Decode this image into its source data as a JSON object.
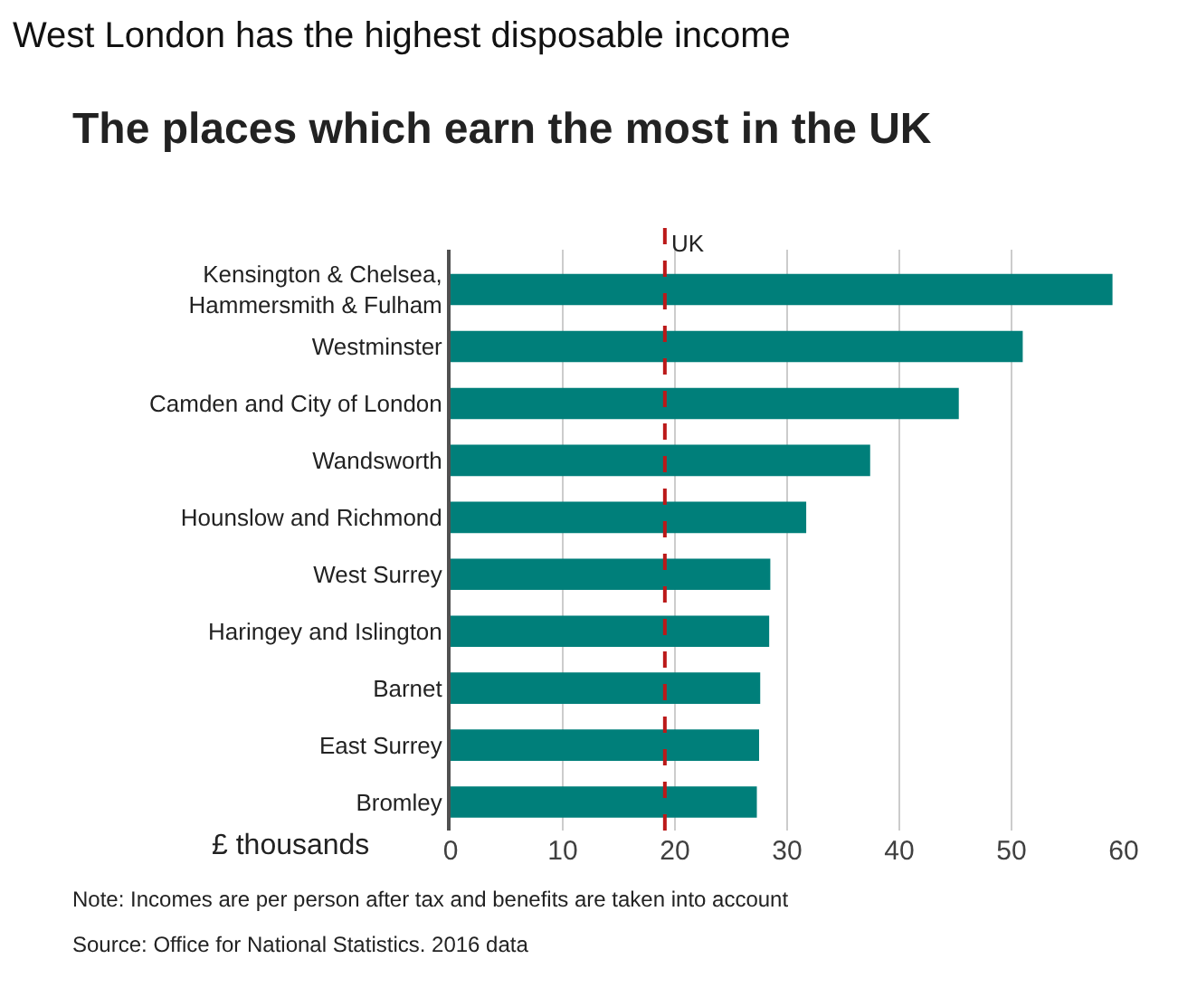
{
  "chart_data": {
    "type": "bar",
    "orientation": "horizontal",
    "title": "West London has the highest disposable income",
    "subtitle": "The places which earn the most in the UK",
    "xlabel": "£ thousands",
    "categories": [
      "Kensington & Chelsea, Hammersmith & Fulham",
      "Westminster",
      "Camden and City of London",
      "Wandsworth",
      "Hounslow and Richmond",
      "West Surrey",
      "Haringey and Islington",
      "Barnet",
      "East Surrey",
      "Bromley"
    ],
    "values": [
      59.0,
      51.0,
      45.3,
      37.4,
      31.7,
      28.5,
      28.4,
      27.6,
      27.5,
      27.3
    ],
    "color": "#007f7a",
    "xlim": [
      0,
      60
    ],
    "xticks": [
      0,
      10,
      20,
      30,
      40,
      50,
      60
    ],
    "grid": "x",
    "ref_lines": [
      {
        "axis": "x",
        "value": 19.1,
        "label": "UK",
        "color": "#bb1919",
        "line_style": "dashed"
      }
    ],
    "annotations": [
      "Note: Incomes are per person after tax and benefits are taken into account",
      "Source: Office for National Statistics. 2016 data"
    ]
  }
}
